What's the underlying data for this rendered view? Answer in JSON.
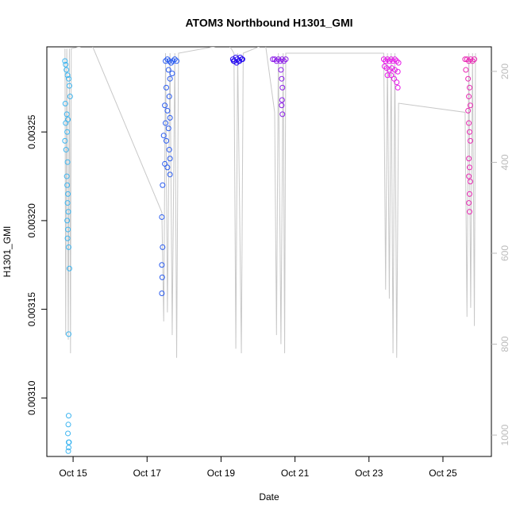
{
  "chart_data": {
    "type": "scatter",
    "title": "ATOM3 Northbound H1301_GMI",
    "x_label": "Date",
    "y_label": "H1301_GMI",
    "xlim": [
      14.29,
      26.31
    ],
    "xticks": [
      {
        "value": 15,
        "label": "Oct 15"
      },
      {
        "value": 17,
        "label": "Oct 17"
      },
      {
        "value": 19,
        "label": "Oct 19"
      },
      {
        "value": 21,
        "label": "Oct 21"
      },
      {
        "value": 23,
        "label": "Oct 23"
      },
      {
        "value": 25,
        "label": "Oct 25"
      }
    ],
    "ylim": [
      0.003067,
      0.003298
    ],
    "yticks": [
      {
        "value": 0.0031,
        "label": "0.00310"
      },
      {
        "value": 0.00315,
        "label": "0.00315"
      },
      {
        "value": 0.0032,
        "label": "0.00320"
      },
      {
        "value": 0.00325,
        "label": "0.00325"
      }
    ],
    "y2lim": [
      1047,
      146
    ],
    "y2ticks": [
      200,
      400,
      600,
      800,
      1000
    ],
    "series": [
      {
        "color": "#3db5f0",
        "x": [
          14.78,
          14.8,
          14.82,
          14.85,
          14.88,
          14.9,
          14.92,
          14.79,
          14.83,
          14.86,
          14.8,
          14.84,
          14.78,
          14.81,
          14.85,
          14.83,
          14.84,
          14.86,
          14.85,
          14.87,
          14.84,
          14.86,
          14.85,
          14.88,
          14.9,
          14.88,
          14.88,
          14.87,
          14.86,
          14.88,
          14.87,
          14.89,
          14.88
        ],
        "values": [
          0.00329,
          0.003288,
          0.003285,
          0.003282,
          0.00328,
          0.003276,
          0.00327,
          0.003266,
          0.00326,
          0.003257,
          0.003255,
          0.00325,
          0.003245,
          0.00324,
          0.003233,
          0.003225,
          0.00322,
          0.003215,
          0.00321,
          0.003205,
          0.0032,
          0.003195,
          0.00319,
          0.003185,
          0.003173,
          0.003136,
          0.00309,
          0.003085,
          0.00308,
          0.003075,
          0.00307,
          0.003075,
          0.003072
        ]
      },
      {
        "color": "#2a5cf0",
        "x": [
          17.5,
          17.55,
          17.6,
          17.65,
          17.7,
          17.75,
          17.8,
          17.58,
          17.62,
          17.68,
          17.52,
          17.6,
          17.48,
          17.55,
          17.62,
          17.5,
          17.58,
          17.45,
          17.52,
          17.6,
          17.62,
          17.48,
          17.55,
          17.62,
          17.42,
          17.4,
          17.42,
          17.4,
          17.41,
          17.4
        ],
        "values": [
          0.00329,
          0.003291,
          0.00329,
          0.003289,
          0.00329,
          0.003291,
          0.00329,
          0.003285,
          0.00328,
          0.003283,
          0.003275,
          0.00327,
          0.003265,
          0.003262,
          0.003258,
          0.003255,
          0.003252,
          0.003248,
          0.003245,
          0.00324,
          0.003235,
          0.003232,
          0.00323,
          0.003226,
          0.00322,
          0.003202,
          0.003185,
          0.003175,
          0.003168,
          0.003159
        ]
      },
      {
        "color": "#2a10f0",
        "x": [
          19.32,
          19.36,
          19.4,
          19.44,
          19.48,
          19.52,
          19.56,
          19.34,
          19.42,
          19.5,
          19.58
        ],
        "values": [
          0.003291,
          0.00329,
          0.003292,
          0.003291,
          0.00329,
          0.003292,
          0.003291,
          0.00329,
          0.003289,
          0.00329,
          0.003291
        ]
      },
      {
        "color": "#8c1ee8",
        "x": [
          20.4,
          20.45,
          20.5,
          20.55,
          20.6,
          20.65,
          20.7,
          20.75,
          20.62,
          20.64,
          20.66,
          20.65,
          20.64,
          20.66
        ],
        "values": [
          0.003291,
          0.003291,
          0.00329,
          0.003291,
          0.00329,
          0.003291,
          0.00329,
          0.003291,
          0.003285,
          0.00328,
          0.003275,
          0.003268,
          0.003265,
          0.00326
        ]
      },
      {
        "color": "#e61ee8",
        "x": [
          23.4,
          23.45,
          23.5,
          23.55,
          23.6,
          23.65,
          23.7,
          23.75,
          23.8,
          23.42,
          23.48,
          23.55,
          23.62,
          23.7,
          23.78,
          23.5,
          23.6,
          23.68,
          23.75,
          23.78
        ],
        "values": [
          0.003291,
          0.00329,
          0.003291,
          0.00329,
          0.003291,
          0.00329,
          0.003291,
          0.00329,
          0.003289,
          0.003287,
          0.003286,
          0.003285,
          0.003286,
          0.003285,
          0.003284,
          0.003282,
          0.003282,
          0.00328,
          0.003278,
          0.003275
        ]
      },
      {
        "color": "#e82ab4",
        "x": [
          25.6,
          25.65,
          25.7,
          25.75,
          25.8,
          25.85,
          25.62,
          25.68,
          25.72,
          25.7,
          25.74,
          25.68,
          25.7,
          25.72,
          25.74,
          25.7,
          25.72,
          25.7,
          25.74,
          25.72,
          25.7,
          25.72
        ],
        "values": [
          0.003291,
          0.003291,
          0.00329,
          0.003291,
          0.00329,
          0.003291,
          0.003285,
          0.00328,
          0.003275,
          0.00327,
          0.003265,
          0.003262,
          0.003255,
          0.00325,
          0.003245,
          0.003235,
          0.00323,
          0.003225,
          0.003222,
          0.003215,
          0.00321,
          0.003205
        ]
      },
      {
        "type": "line",
        "axis": "y2",
        "color": "#c8c8c8",
        "x": [
          14.78,
          14.8,
          14.83,
          14.87,
          14.9,
          14.93,
          14.95,
          15.5,
          17.4,
          17.45,
          17.5,
          17.55,
          17.62,
          17.68,
          17.75,
          17.8,
          17.85,
          19.2,
          19.35,
          19.4,
          19.45,
          19.55,
          19.6,
          20.2,
          20.45,
          20.5,
          20.55,
          20.62,
          20.68,
          20.72,
          20.75,
          23.4,
          23.45,
          23.5,
          23.55,
          23.6,
          23.65,
          23.7,
          23.75,
          23.8,
          25.6,
          25.65,
          25.7,
          25.75,
          25.8,
          25.85,
          25.88
        ],
        "values": [
          150,
          780,
          150,
          790,
          150,
          820,
          150,
          140,
          510,
          750,
          160,
          730,
          160,
          780,
          160,
          830,
          160,
          140,
          160,
          810,
          160,
          820,
          160,
          140,
          290,
          780,
          160,
          800,
          160,
          820,
          160,
          160,
          680,
          160,
          700,
          160,
          820,
          160,
          830,
          270,
          290,
          740,
          160,
          720,
          160,
          760,
          160
        ]
      }
    ]
  }
}
